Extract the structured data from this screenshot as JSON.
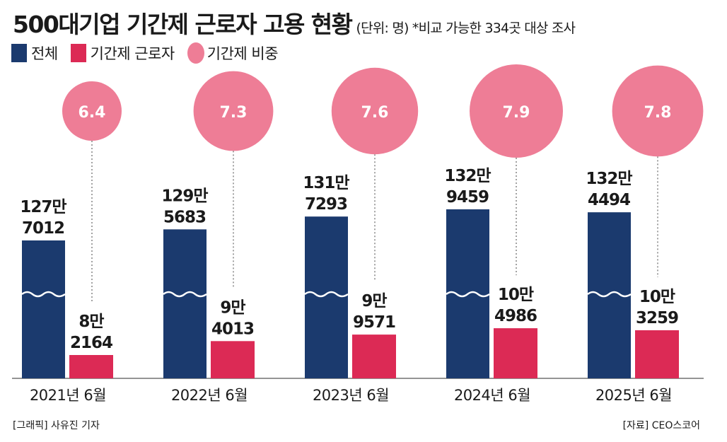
{
  "title": "500대기업 기간제 근로자 고용 현황",
  "subtitle": "(단위: 명) *비교 가능한 334곳 대상 조사",
  "legend": [
    {
      "label": "전체",
      "shape": "square",
      "color": "#1b3a6e"
    },
    {
      "label": "기간제 근로자",
      "shape": "square",
      "color": "#dc2a55"
    },
    {
      "label": "기간제 비중",
      "shape": "circle",
      "color": "#ee7d96"
    }
  ],
  "chart_data": {
    "type": "bar",
    "title": "500대기업 기간제 근로자 고용 현황",
    "unit": "명",
    "categories": [
      "2021년 6월",
      "2022년 6월",
      "2023년 6월",
      "2024년 6월",
      "2025년 6월"
    ],
    "axis_break": true,
    "series": [
      {
        "name": "전체",
        "color": "#1b3a6e",
        "values": [
          1277012,
          1295683,
          1317293,
          1329459,
          1324494
        ],
        "labels": [
          [
            "127만",
            "7012"
          ],
          [
            "129만",
            "5683"
          ],
          [
            "131만",
            "7293"
          ],
          [
            "132만",
            "9459"
          ],
          [
            "132만",
            "4494"
          ]
        ]
      },
      {
        "name": "기간제 근로자",
        "color": "#dc2a55",
        "values": [
          82164,
          94013,
          99571,
          104986,
          103259
        ],
        "labels": [
          [
            "8만",
            "2164"
          ],
          [
            "9만",
            "4013"
          ],
          [
            "9만",
            "9571"
          ],
          [
            "10만",
            "4986"
          ],
          [
            "10만",
            "3259"
          ]
        ]
      },
      {
        "name": "기간제 비중",
        "type": "bubble",
        "color": "#ee7d96",
        "values": [
          6.4,
          7.3,
          7.6,
          7.9,
          7.8
        ],
        "labels": [
          "6.4",
          "7.3",
          "7.6",
          "7.9",
          "7.8"
        ]
      }
    ],
    "grid": false,
    "legend_position": "top-left"
  },
  "footer": {
    "credit": "[그래픽] 사유진 기자",
    "source": "[자료] CEO스코어"
  }
}
